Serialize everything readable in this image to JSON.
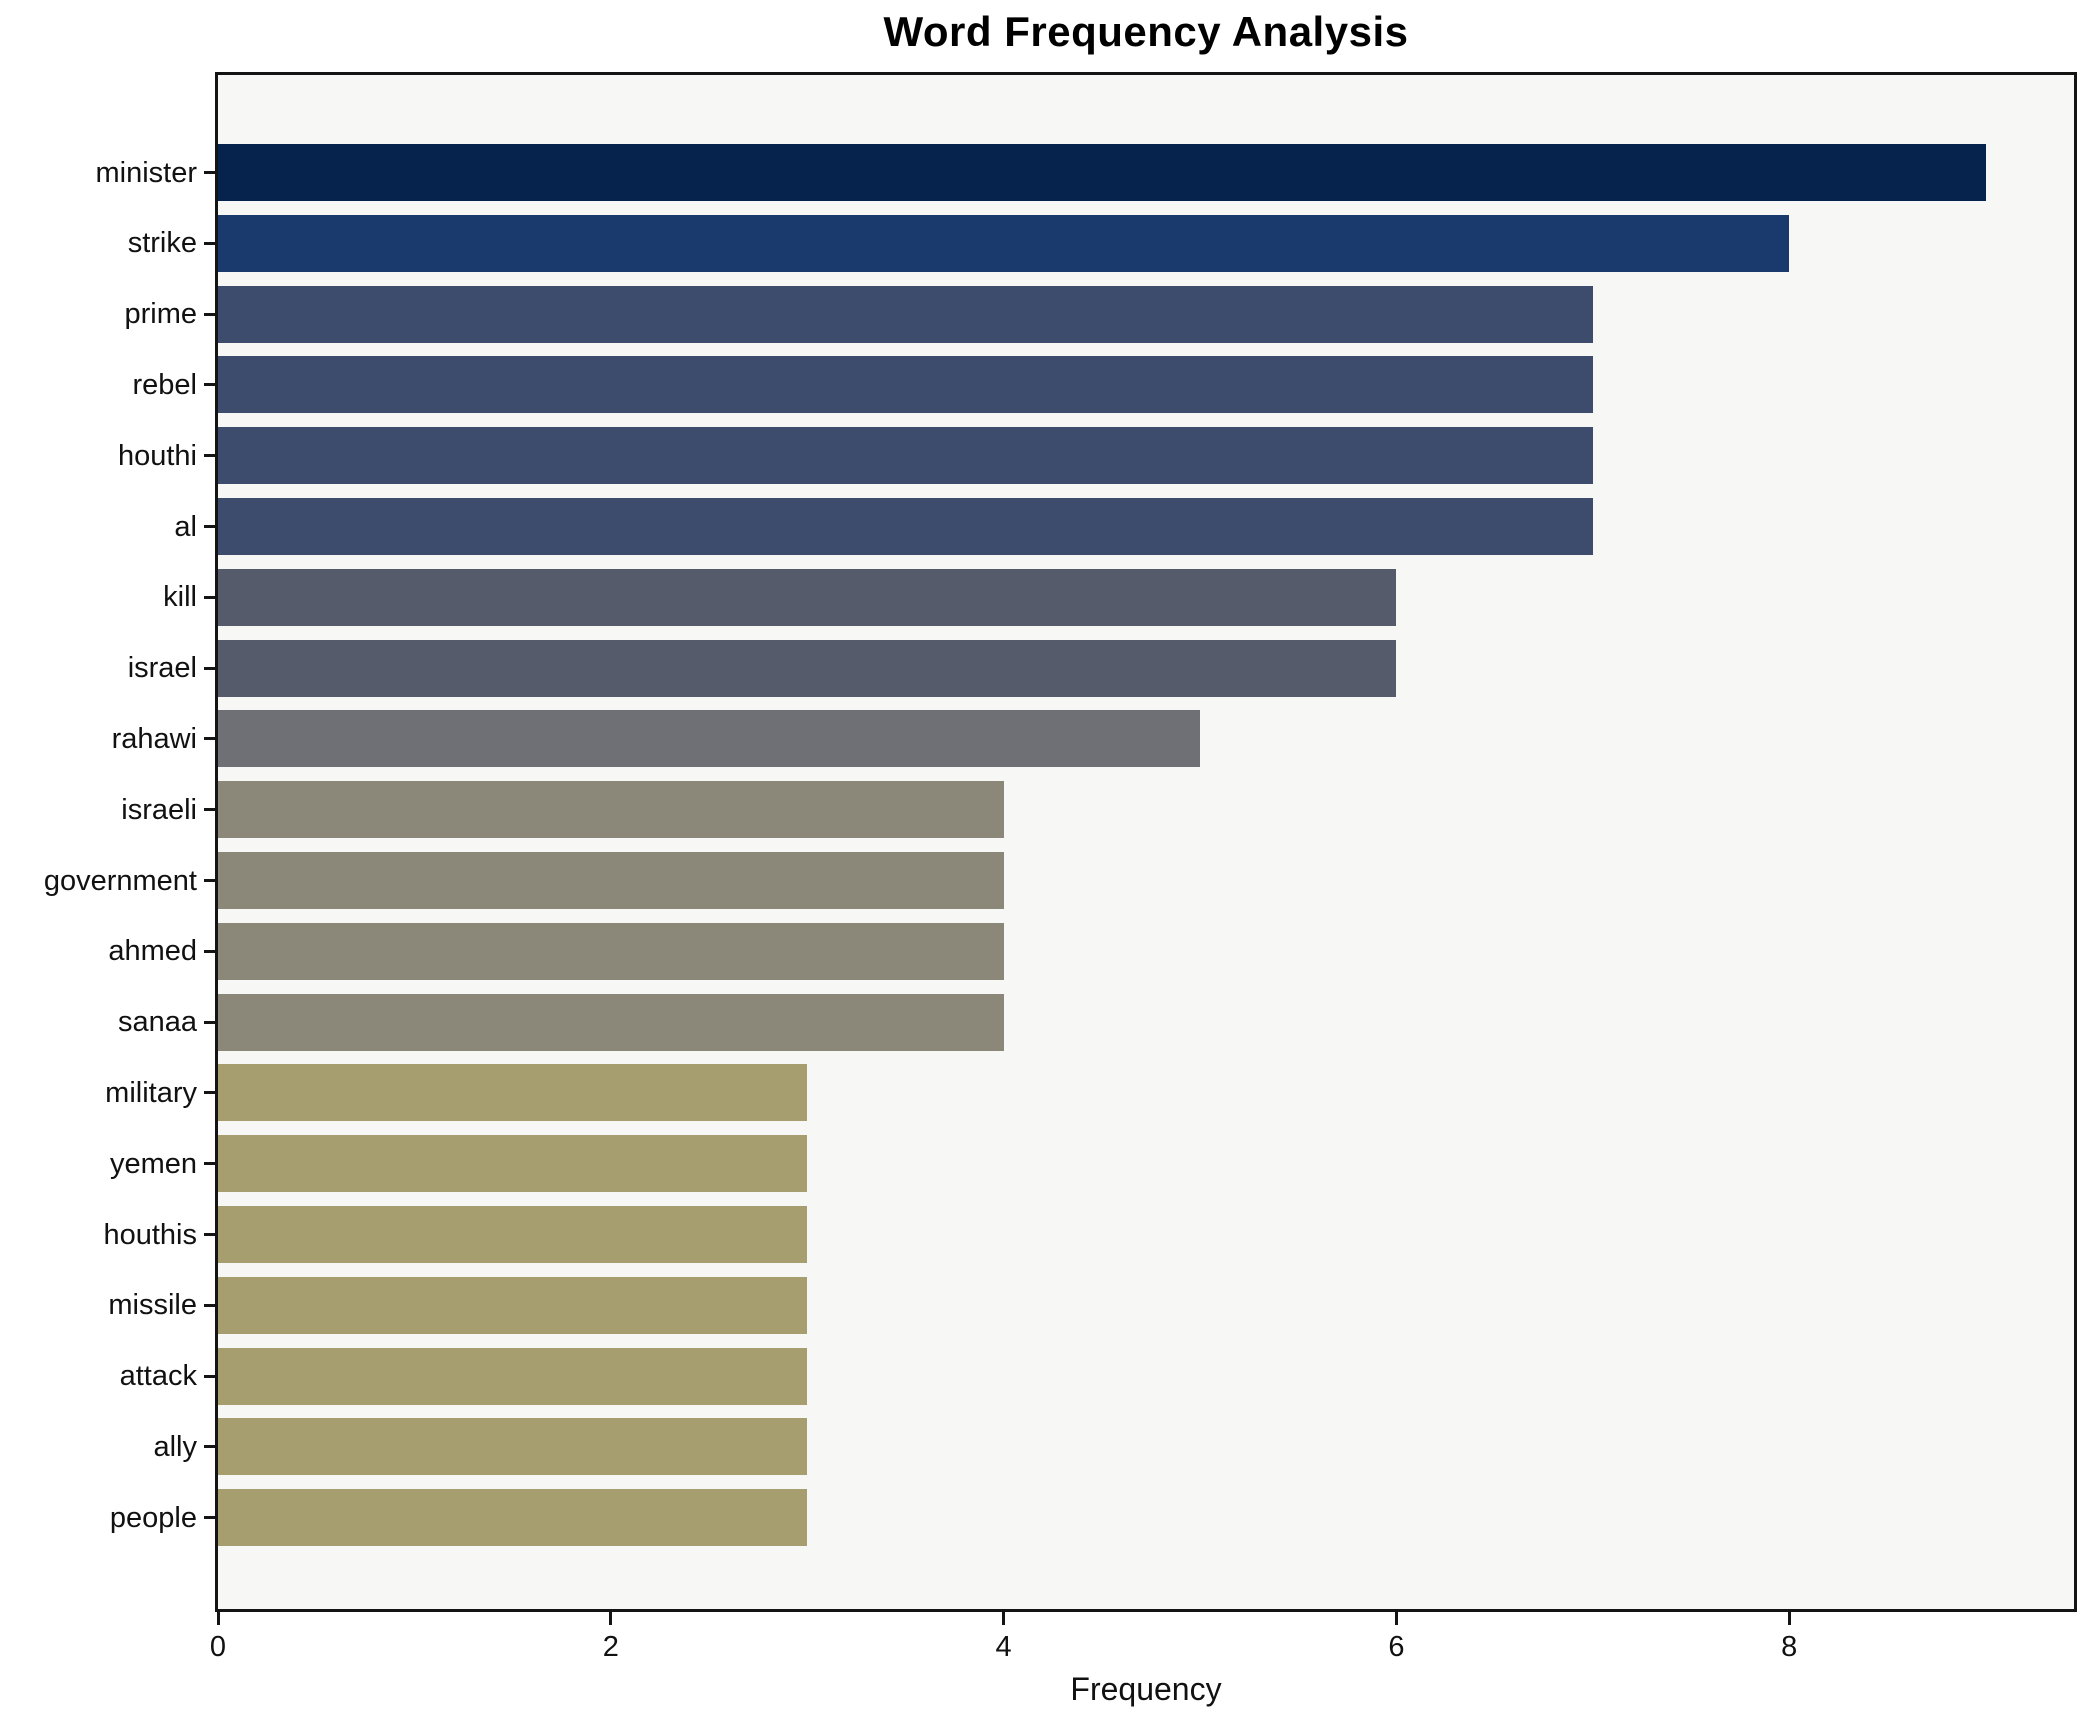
{
  "chart_data": {
    "type": "bar",
    "orientation": "horizontal",
    "title": "Word Frequency Analysis",
    "xlabel": "Frequency",
    "ylabel": "",
    "categories": [
      "minister",
      "strike",
      "prime",
      "rebel",
      "houthi",
      "al",
      "kill",
      "israel",
      "rahawi",
      "israeli",
      "government",
      "ahmed",
      "sanaa",
      "military",
      "yemen",
      "houthis",
      "missile",
      "attack",
      "ally",
      "people"
    ],
    "values": [
      9,
      8,
      7,
      7,
      7,
      7,
      6,
      6,
      5,
      4,
      4,
      4,
      4,
      3,
      3,
      3,
      3,
      3,
      3,
      3
    ],
    "bar_colors": [
      "#05234c",
      "#1a3a6e",
      "#3d4b6c",
      "#3d4b6c",
      "#3d4b6c",
      "#3d4b6c",
      "#565b6c",
      "#565b6c",
      "#6f7076",
      "#8b8779",
      "#8b8779",
      "#8b8779",
      "#8b8779",
      "#a79e70",
      "#a79e70",
      "#a79e70",
      "#a79e70",
      "#a79e70",
      "#a79e70",
      "#a79e70"
    ],
    "xlim": [
      0,
      9.45
    ],
    "xticks": [
      0,
      2,
      4,
      6,
      8
    ],
    "xtick_labels": [
      "0",
      "2",
      "4",
      "6",
      "8"
    ],
    "grid": false,
    "legend": null,
    "plot_bg": "#f7f7f6",
    "fig_bg": "#ffffff",
    "spine_color": "#141414",
    "text_color": "#111111"
  }
}
